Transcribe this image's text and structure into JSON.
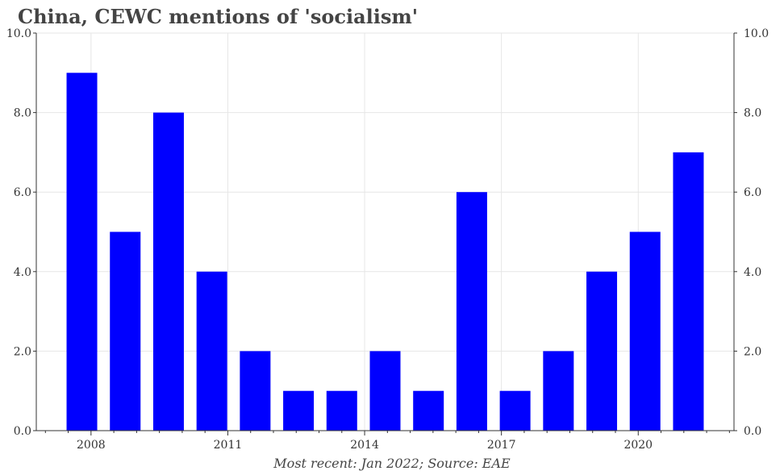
{
  "chart_data": {
    "type": "bar",
    "title": "China, CEWC mentions of 'socialism'",
    "source": "Most recent: Jan 2022; Source: EAE",
    "x": [
      2007.8,
      2008.75,
      2009.7,
      2010.65,
      2011.6,
      2012.55,
      2013.5,
      2014.45,
      2015.4,
      2016.35,
      2017.3,
      2018.25,
      2019.2,
      2020.15,
      2021.1
    ],
    "values": [
      9,
      5,
      8,
      4,
      2,
      1,
      1,
      2,
      1,
      6,
      1,
      2,
      4,
      5,
      7
    ],
    "xticks": [
      2008,
      2011,
      2014,
      2017,
      2020
    ],
    "xtick_labels": [
      "2008",
      "2011",
      "2014",
      "2017",
      "2020"
    ],
    "xlim": [
      2006.8,
      2022.1
    ],
    "ylim": [
      0,
      10
    ],
    "yticks": [
      0,
      2,
      4,
      6,
      8,
      10
    ],
    "ytick_labels": [
      "0.0",
      "2.0",
      "4.0",
      "6.0",
      "8.0",
      "10.0"
    ],
    "bar_color": "#0000ff",
    "grid": true,
    "legend": "none"
  }
}
